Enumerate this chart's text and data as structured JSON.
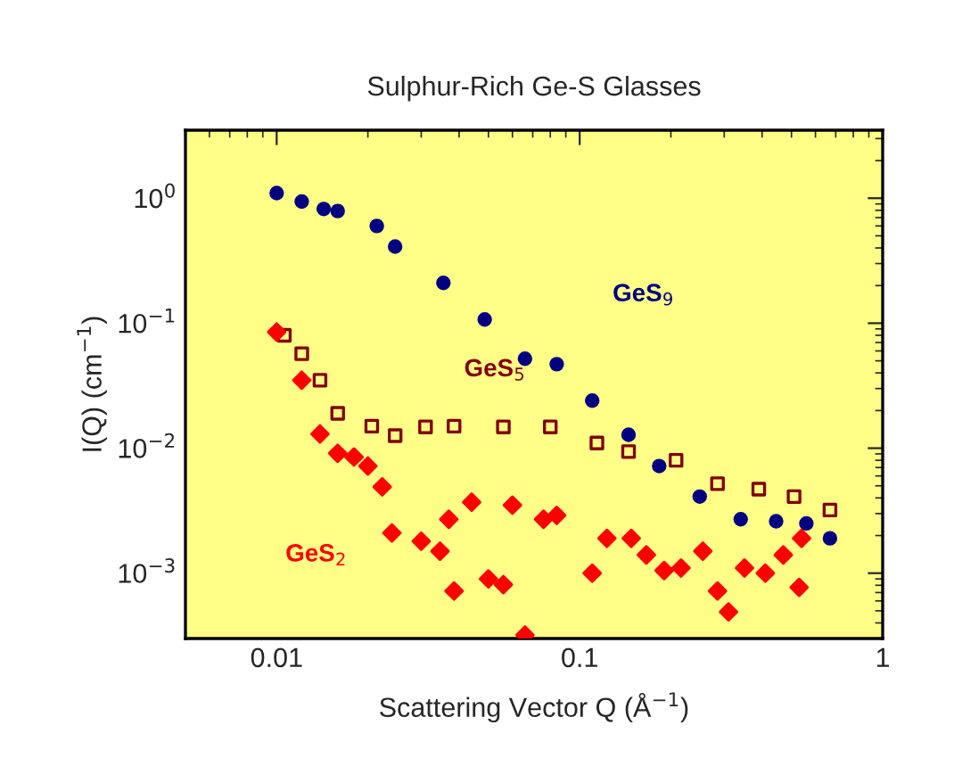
{
  "chart_data": {
    "type": "scatter",
    "title": "Sulphur-Rich Ge-S Glasses",
    "xlabel": "Scattering Vector Q (Å$^{−1}$)",
    "ylabel": "I(Q) (cm$^{−1}$)",
    "log": "xy",
    "xlim": [
      0.005,
      1
    ],
    "ylim": [
      0.0003,
      3.5
    ],
    "xticks": [
      0.01,
      0.1,
      1
    ],
    "yticks": [
      {
        "value": 0.001,
        "label": "10$^{−3}$"
      },
      {
        "value": 0.01,
        "label": "10$^{−2}$"
      },
      {
        "value": 0.1,
        "label": "10$^{−1}$"
      },
      {
        "value": 1,
        "label": "10$^{0}$"
      }
    ],
    "grid": false,
    "legend": false,
    "series": [
      {
        "name": "GeS$_{9}$",
        "color": "#000080",
        "marker": "circle",
        "x": [
          0.01,
          0.0121,
          0.0143,
          0.0159,
          0.0214,
          0.0246,
          0.0355,
          0.0486,
          0.066,
          0.084,
          0.11,
          0.145,
          0.183,
          0.249,
          0.34,
          0.445,
          0.56,
          0.67
        ],
        "values": [
          1.1,
          0.94,
          0.82,
          0.79,
          0.6,
          0.41,
          0.21,
          0.107,
          0.052,
          0.047,
          0.024,
          0.0128,
          0.0072,
          0.0041,
          0.0027,
          0.0026,
          0.0025,
          0.0019
        ]
      },
      {
        "name": "GeS$_{5}$",
        "color": "#800000",
        "marker": "square",
        "x": [
          0.0106,
          0.0121,
          0.0139,
          0.0159,
          0.0206,
          0.0246,
          0.031,
          0.0385,
          0.056,
          0.08,
          0.114,
          0.145,
          0.208,
          0.285,
          0.39,
          0.51,
          0.67
        ],
        "values": [
          0.08,
          0.057,
          0.035,
          0.019,
          0.015,
          0.0126,
          0.0148,
          0.015,
          0.0148,
          0.0148,
          0.011,
          0.0094,
          0.008,
          0.0052,
          0.0047,
          0.0041,
          0.0032
        ]
      },
      {
        "name": "GeS$_{2}$",
        "color": "#ff0000",
        "marker": "diamond",
        "x": [
          0.01,
          0.0121,
          0.0139,
          0.0159,
          0.018,
          0.02,
          0.0223,
          0.024,
          0.03,
          0.0346,
          0.037,
          0.0385,
          0.044,
          0.05,
          0.056,
          0.06,
          0.066,
          0.076,
          0.084,
          0.11,
          0.123,
          0.148,
          0.166,
          0.19,
          0.216,
          0.255,
          0.285,
          0.31,
          0.35,
          0.41,
          0.47,
          0.53,
          0.54
        ],
        "values": [
          0.085,
          0.035,
          0.013,
          0.0091,
          0.0085,
          0.0072,
          0.0049,
          0.0021,
          0.0018,
          0.0015,
          0.0027,
          0.00072,
          0.0037,
          0.0009,
          0.00081,
          0.0035,
          0.00032,
          0.0027,
          0.0029,
          0.001,
          0.0019,
          0.0019,
          0.0014,
          0.00105,
          0.0011,
          0.0015,
          0.00072,
          0.00049,
          0.0011,
          0.001,
          0.0014,
          0.00077,
          0.0019
        ]
      }
    ]
  }
}
